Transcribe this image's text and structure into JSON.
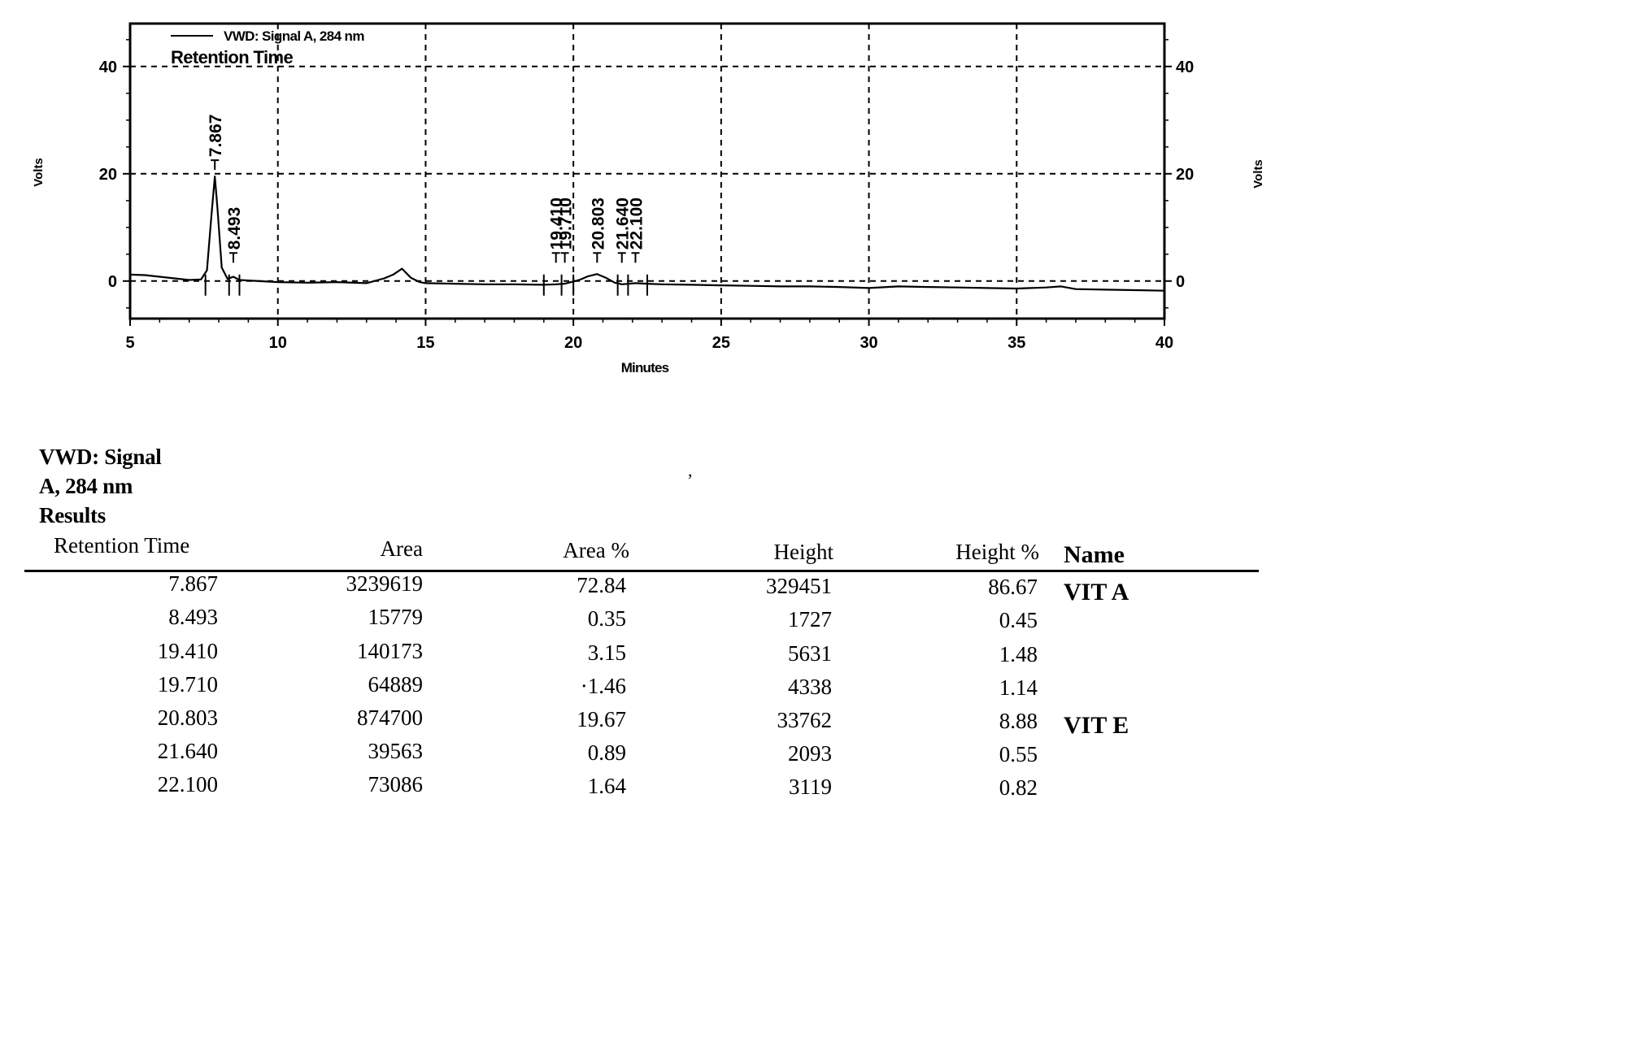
{
  "chart_data": {
    "type": "line",
    "title": "",
    "legend": {
      "entry": "VWD: Signal A, 284 nm",
      "subtitle": "Retention Time",
      "placement": "top-left"
    },
    "xlabel": "Minutes",
    "ylabel_left": "Volts",
    "ylabel_right": "Volts",
    "xlim": [
      5,
      40
    ],
    "ylim": [
      -7,
      48
    ],
    "x_ticks": [
      5,
      10,
      15,
      20,
      25,
      30,
      35,
      40
    ],
    "y_ticks": [
      0,
      20,
      40
    ],
    "grid": "dashed at x=10,15,20,25,30,35 and y=0,20,40",
    "series": [
      {
        "name": "VWD: Signal A, 284 nm",
        "x": [
          5.0,
          5.5,
          6.0,
          6.5,
          7.0,
          7.4,
          7.6,
          7.75,
          7.867,
          7.95,
          8.1,
          8.3,
          8.493,
          8.7,
          9.0,
          10.0,
          11.0,
          12.0,
          13.0,
          13.6,
          13.9,
          14.2,
          14.5,
          14.8,
          15.0,
          16.0,
          17.0,
          18.0,
          19.0,
          19.41,
          19.71,
          20.2,
          20.5,
          20.803,
          21.1,
          21.4,
          21.64,
          22.1,
          22.5,
          23.0,
          24.0,
          25.0,
          26.0,
          27.0,
          28.0,
          29.0,
          30.0,
          31.0,
          32.0,
          33.0,
          34.0,
          35.0,
          36.0,
          36.5,
          37.0,
          38.0,
          39.0,
          40.0
        ],
        "y": [
          1.2,
          1.1,
          0.8,
          0.5,
          0.2,
          0.3,
          2.0,
          12.0,
          19.5,
          14.0,
          2.5,
          0.4,
          0.8,
          0.2,
          0.1,
          -0.2,
          -0.3,
          -0.2,
          -0.4,
          0.5,
          1.2,
          2.3,
          0.6,
          -0.2,
          -0.4,
          -0.5,
          -0.6,
          -0.6,
          -0.7,
          -0.6,
          -0.5,
          0.2,
          0.9,
          1.3,
          0.6,
          -0.3,
          -0.6,
          -0.4,
          -0.5,
          -0.6,
          -0.7,
          -0.8,
          -0.9,
          -1.0,
          -1.0,
          -1.1,
          -1.3,
          -1.0,
          -1.1,
          -1.2,
          -1.3,
          -1.4,
          -1.2,
          -1.0,
          -1.5,
          -1.6,
          -1.7,
          -1.8
        ]
      }
    ],
    "peak_labels": [
      "7.867",
      "8.493",
      "19.410",
      "19.710",
      "20.803",
      "21.640",
      "22.100"
    ],
    "peak_markers": [
      {
        "label": "7.867",
        "x": 7.867,
        "y": 19.5
      },
      {
        "label": "8.493",
        "x": 8.493,
        "y": 0.8
      },
      {
        "label": "19.410",
        "x": 19.41,
        "y": -0.6
      },
      {
        "label": "19.710",
        "x": 19.71,
        "y": -0.5
      },
      {
        "label": "20.803",
        "x": 20.803,
        "y": 1.3
      },
      {
        "label": "21.640",
        "x": 21.64,
        "y": -0.6
      },
      {
        "label": "22.100",
        "x": 22.1,
        "y": -0.4
      }
    ],
    "integration_marks_x": [
      7.55,
      8.35,
      8.7,
      19.0,
      19.6,
      20.0,
      21.5,
      21.85,
      22.5
    ]
  },
  "results": {
    "title_lines": [
      "VWD: Signal",
      "A, 284 nm",
      "Results"
    ],
    "headers": [
      "Retention Time",
      "Area",
      "Area %",
      "Height",
      "Height %",
      "Name"
    ],
    "rows": [
      {
        "rt": "7.867",
        "area": "3239619",
        "area_pct": "72.84",
        "height": "329451",
        "height_pct": "86.67",
        "name": "VIT A"
      },
      {
        "rt": "8.493",
        "area": "15779",
        "area_pct": "0.35",
        "height": "1727",
        "height_pct": "0.45",
        "name": ""
      },
      {
        "rt": "19.410",
        "area": "140173",
        "area_pct": "3.15",
        "height": "5631",
        "height_pct": "1.48",
        "name": ""
      },
      {
        "rt": "19.710",
        "area": "64889",
        "area_pct": "·1.46",
        "height": "4338",
        "height_pct": "1.14",
        "name": ""
      },
      {
        "rt": "20.803",
        "area": "874700",
        "area_pct": "19.67",
        "height": "33762",
        "height_pct": "8.88",
        "name": "VIT E"
      },
      {
        "rt": "21.640",
        "area": "39563",
        "area_pct": "0.89",
        "height": "2093",
        "height_pct": "0.55",
        "name": ""
      },
      {
        "rt": "22.100",
        "area": "73086",
        "area_pct": "1.64",
        "height": "3119",
        "height_pct": "0.82",
        "name": ""
      }
    ]
  }
}
